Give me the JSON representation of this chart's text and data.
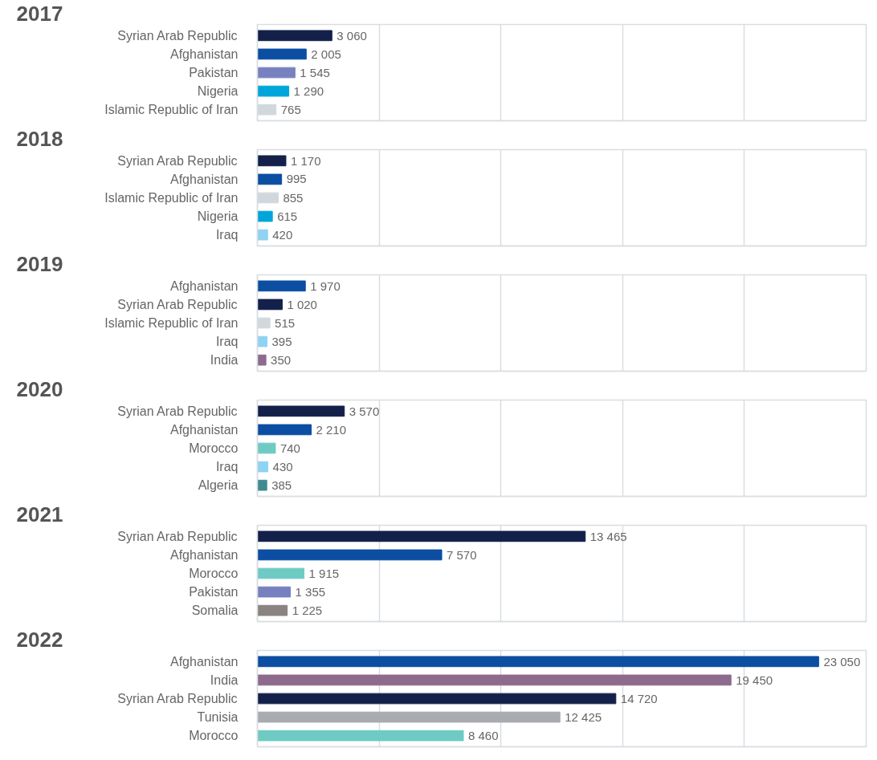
{
  "chart_data": [
    {
      "type": "bar",
      "orientation": "horizontal",
      "title": "2017",
      "categories": [
        "Syrian Arab Republic",
        "Afghanistan",
        "Pakistan",
        "Nigeria",
        "Islamic Republic of Iran"
      ],
      "values": [
        3060,
        2005,
        1545,
        1290,
        765
      ],
      "value_labels": [
        "3 060",
        "2 005",
        "1 545",
        "1 290",
        "765"
      ],
      "colors": [
        "#13204a",
        "#0b4ea2",
        "#7781c0",
        "#00a5d9",
        "#d0d8de"
      ],
      "xlim": [
        0,
        25000
      ],
      "xticks": [
        {
          "value": 5000,
          "label": null
        },
        {
          "value": 10000,
          "label": null
        },
        {
          "value": 15000,
          "label": null
        },
        {
          "value": 20000,
          "label": null
        }
      ],
      "grid": "x"
    },
    {
      "type": "bar",
      "orientation": "horizontal",
      "title": "2018",
      "categories": [
        "Syrian Arab Republic",
        "Afghanistan",
        "Islamic Republic of Iran",
        "Nigeria",
        "Iraq"
      ],
      "values": [
        1170,
        995,
        855,
        615,
        420
      ],
      "value_labels": [
        "1 170",
        "995",
        "855",
        "615",
        "420"
      ],
      "colors": [
        "#13204a",
        "#0b4ea2",
        "#d0d8de",
        "#00a5d9",
        "#8fd3f2"
      ],
      "xlim": [
        0,
        25000
      ],
      "xticks": [
        {
          "value": 5000,
          "label": null
        },
        {
          "value": 10000,
          "label": null
        },
        {
          "value": 15000,
          "label": null
        },
        {
          "value": 20000,
          "label": null
        }
      ],
      "grid": "x"
    },
    {
      "type": "bar",
      "orientation": "horizontal",
      "title": "2019",
      "categories": [
        "Afghanistan",
        "Syrian Arab Republic",
        "Islamic Republic of Iran",
        "Iraq",
        "India"
      ],
      "values": [
        1970,
        1020,
        515,
        395,
        350
      ],
      "value_labels": [
        "1 970",
        "1 020",
        "515",
        "395",
        "350"
      ],
      "colors": [
        "#0b4ea2",
        "#13204a",
        "#d0d8de",
        "#8fd3f2",
        "#8e6a8e"
      ],
      "xlim": [
        0,
        25000
      ],
      "xticks": [
        {
          "value": 5000,
          "label": null
        },
        {
          "value": 10000,
          "label": null
        },
        {
          "value": 15000,
          "label": null
        },
        {
          "value": 20000,
          "label": null
        }
      ],
      "grid": "x"
    },
    {
      "type": "bar",
      "orientation": "horizontal",
      "title": "2020",
      "categories": [
        "Syrian Arab Republic",
        "Afghanistan",
        "Morocco",
        "Iraq",
        "Algeria"
      ],
      "values": [
        3570,
        2210,
        740,
        430,
        385
      ],
      "value_labels": [
        "3 570",
        "2 210",
        "740",
        "430",
        "385"
      ],
      "colors": [
        "#13204a",
        "#0b4ea2",
        "#6ecbc4",
        "#8fd3f2",
        "#3f8b91"
      ],
      "xlim": [
        0,
        25000
      ],
      "xticks": [
        {
          "value": 5000,
          "label": null
        },
        {
          "value": 10000,
          "label": null
        },
        {
          "value": 15000,
          "label": null
        },
        {
          "value": 20000,
          "label": null
        }
      ],
      "grid": "x"
    },
    {
      "type": "bar",
      "orientation": "horizontal",
      "title": "2021",
      "categories": [
        "Syrian Arab Republic",
        "Afghanistan",
        "Morocco",
        "Pakistan",
        "Somalia"
      ],
      "values": [
        13465,
        7570,
        1915,
        1355,
        1225
      ],
      "value_labels": [
        "13 465",
        "7 570",
        "1 915",
        "1 355",
        "1 225"
      ],
      "colors": [
        "#13204a",
        "#0b4ea2",
        "#6ecbc4",
        "#7781c0",
        "#8a8381"
      ],
      "xlim": [
        0,
        25000
      ],
      "xticks": [
        {
          "value": 5000,
          "label": null
        },
        {
          "value": 10000,
          "label": null
        },
        {
          "value": 15000,
          "label": null
        },
        {
          "value": 20000,
          "label": null
        }
      ],
      "grid": "x"
    },
    {
      "type": "bar",
      "orientation": "horizontal",
      "title": "2022",
      "categories": [
        "Afghanistan",
        "India",
        "Syrian Arab Republic",
        "Tunisia",
        "Morocco"
      ],
      "values": [
        23050,
        19450,
        14720,
        12425,
        8460
      ],
      "value_labels": [
        "23 050",
        "19 450",
        "14 720",
        "12 425",
        "8 460"
      ],
      "colors": [
        "#0b4ea2",
        "#8e6a8e",
        "#13204a",
        "#a8abb0",
        "#6ecbc4"
      ],
      "xlim": [
        0,
        25000
      ],
      "xticks": [
        {
          "value": 5000,
          "label": null
        },
        {
          "value": 10000,
          "label": null
        },
        {
          "value": 15000,
          "label": null
        },
        {
          "value": 20000,
          "label": null
        }
      ],
      "grid": "x"
    }
  ]
}
